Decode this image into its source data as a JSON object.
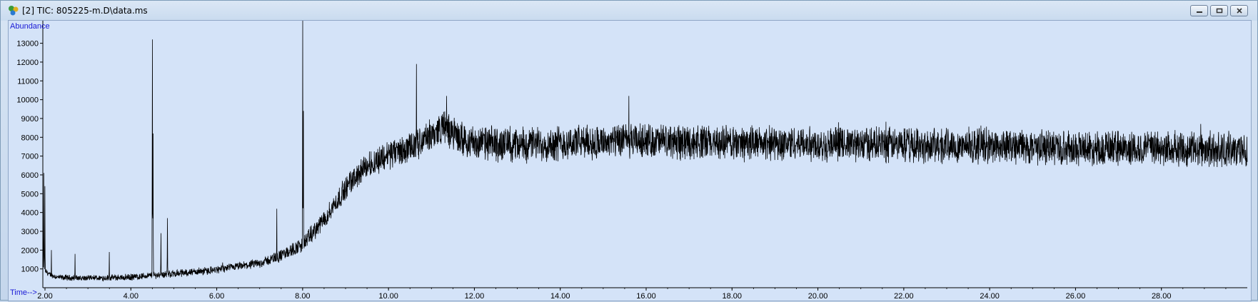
{
  "window": {
    "title": "[2] TIC: 805225-m.D\\data.ms",
    "controls": [
      "minimize",
      "restore",
      "close"
    ]
  },
  "colors": {
    "plot_background": "#d4e3f8",
    "trace": "#000000",
    "axis_label": "#1a1ad6"
  },
  "chart_data": {
    "type": "line",
    "title": "",
    "ylabel": "Abundance",
    "xlabel": "Time-->",
    "xlim": [
      1.95,
      30.0
    ],
    "ylim": [
      0,
      14200
    ],
    "x_ticks": [
      "2.00",
      "4.00",
      "6.00",
      "8.00",
      "10.00",
      "12.00",
      "14.00",
      "16.00",
      "18.00",
      "20.00",
      "22.00",
      "24.00",
      "26.00",
      "28.00"
    ],
    "y_ticks": [
      "1000",
      "2000",
      "3000",
      "4000",
      "5000",
      "6000",
      "7000",
      "8000",
      "9000",
      "10000",
      "11000",
      "12000",
      "13000"
    ],
    "baseline": {
      "x": [
        1.95,
        2.0,
        2.1,
        2.3,
        3.0,
        4.0,
        5.0,
        6.0,
        7.0,
        7.5,
        8.0,
        8.5,
        9.0,
        9.5,
        10.0,
        10.5,
        11.0,
        11.3,
        11.6,
        12.0,
        13.0,
        14.0,
        15.0,
        16.0,
        18.0,
        20.0,
        22.0,
        24.0,
        26.0,
        28.0,
        30.0
      ],
      "y": [
        1200,
        900,
        700,
        550,
        500,
        560,
        750,
        950,
        1300,
        1700,
        2300,
        3600,
        5300,
        6500,
        7100,
        7400,
        8100,
        8600,
        8000,
        7700,
        7600,
        7700,
        7750,
        7800,
        7700,
        7650,
        7600,
        7550,
        7450,
        7400,
        7300
      ]
    },
    "noise_amplitude": {
      "x": [
        1.95,
        7.0,
        8.5,
        10.0,
        12.0,
        30.0
      ],
      "y": [
        120,
        200,
        450,
        700,
        800,
        800
      ]
    },
    "peaks": [
      {
        "x": 1.97,
        "y": 6100
      },
      {
        "x": 2.0,
        "y": 5400
      },
      {
        "x": 2.15,
        "y": 2000
      },
      {
        "x": 2.7,
        "y": 1800
      },
      {
        "x": 3.5,
        "y": 1900
      },
      {
        "x": 4.5,
        "y": 13200
      },
      {
        "x": 4.52,
        "y": 8200
      },
      {
        "x": 4.7,
        "y": 2900
      },
      {
        "x": 4.85,
        "y": 3700
      },
      {
        "x": 7.4,
        "y": 4200
      },
      {
        "x": 8.0,
        "y": 14200
      },
      {
        "x": 8.02,
        "y": 9400
      },
      {
        "x": 10.65,
        "y": 11900
      },
      {
        "x": 11.35,
        "y": 10200
      },
      {
        "x": 15.6,
        "y": 10200
      }
    ]
  }
}
